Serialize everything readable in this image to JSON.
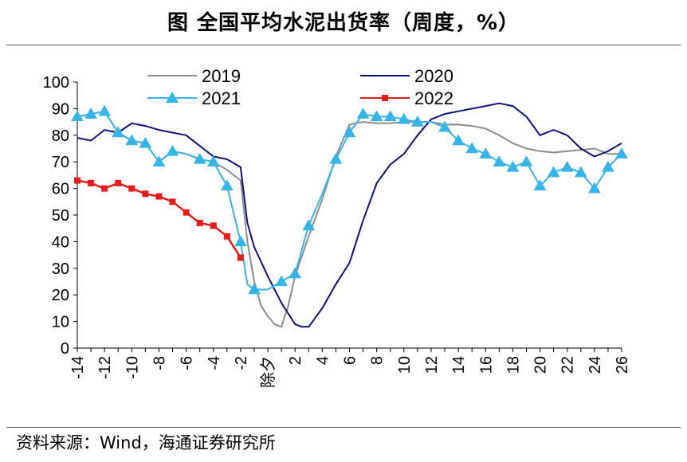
{
  "title": "图  全国平均水泥出货率（周度，%）",
  "source": "资料来源：Wind，海通证券研究所",
  "chart_data": {
    "type": "line",
    "title": "全国平均水泥出货率（周度，%）",
    "xlabel": "",
    "ylabel": "",
    "ylim": [
      0,
      100
    ],
    "yticks": [
      0,
      10,
      20,
      30,
      40,
      50,
      60,
      70,
      80,
      90,
      100
    ],
    "xlim": [
      -14,
      26
    ],
    "xticks": [
      "-14",
      "-12",
      "-10",
      "-8",
      "-6",
      "-4",
      "-2",
      "除夕",
      "2",
      "4",
      "6",
      "8",
      "10",
      "12",
      "14",
      "16",
      "18",
      "20",
      "22",
      "24",
      "26"
    ],
    "legend": "top",
    "series": [
      {
        "name": "2019",
        "color": "#8c8c8c",
        "marker": "none",
        "x": [
          -14,
          -13,
          -12,
          -11,
          -10,
          -9,
          -8,
          -7,
          -6,
          -5,
          -4,
          -3,
          -2,
          -1.5,
          -1,
          -0.5,
          0,
          0.5,
          1,
          1.5,
          2,
          3,
          4,
          5,
          6,
          7,
          8,
          9,
          10,
          11,
          12,
          13,
          14,
          15,
          16,
          17,
          18,
          19,
          20,
          21,
          22,
          23,
          24,
          25,
          26
        ],
        "values": [
          87,
          88,
          89,
          81,
          78,
          77,
          70,
          74,
          73,
          71,
          70,
          67,
          63,
          40,
          25,
          16,
          12,
          9,
          8,
          16,
          27,
          42,
          56,
          72,
          84,
          85,
          84.5,
          84.5,
          85,
          85,
          85,
          84,
          84,
          83.5,
          82.5,
          80,
          77,
          75,
          74,
          73.5,
          74,
          74.5,
          75,
          73,
          73
        ]
      },
      {
        "name": "2020",
        "color": "#10107a",
        "marker": "none",
        "x": [
          -14,
          -13,
          -12,
          -11,
          -10,
          -9,
          -8,
          -7,
          -6,
          -5,
          -4,
          -3,
          -2,
          -1.5,
          -1,
          0,
          1,
          2,
          2.5,
          3,
          4,
          5,
          6,
          7,
          8,
          9,
          10,
          11,
          12,
          13,
          14,
          15,
          16,
          17,
          18,
          19,
          20,
          21,
          22,
          23,
          24,
          25,
          26
        ],
        "values": [
          79,
          78,
          82,
          81,
          84.5,
          83.5,
          82,
          81,
          80,
          76,
          72,
          71,
          68,
          47,
          38,
          27,
          17,
          9,
          8,
          8,
          15,
          24,
          32,
          48,
          62,
          69,
          73,
          80,
          86,
          88,
          89,
          90,
          91,
          92,
          91,
          87,
          80,
          82,
          80,
          75,
          72,
          74,
          77
        ]
      },
      {
        "name": "2021",
        "color": "#35b4ea",
        "marker": "triangle",
        "x": [
          -14,
          -13,
          -12,
          -11,
          -10,
          -9,
          -8,
          -7,
          -6,
          -5,
          -4,
          -3,
          -2,
          -1.5,
          -1,
          0,
          1,
          2,
          3,
          4,
          5,
          6,
          7,
          8,
          9,
          10,
          11,
          12,
          13,
          14,
          15,
          16,
          17,
          18,
          19,
          20,
          21,
          22,
          23,
          24,
          25,
          26
        ],
        "markers_x": [
          -14,
          -13,
          -12,
          -11,
          -10,
          -9,
          -8,
          -7,
          -5,
          -4,
          -3,
          -2,
          -1,
          1,
          2,
          3,
          5,
          6,
          7,
          8,
          9,
          10,
          11,
          13,
          14,
          15,
          16,
          17,
          18,
          19,
          20,
          21,
          22,
          23,
          24,
          25,
          26
        ],
        "values": [
          87,
          88,
          89,
          81,
          78,
          77,
          70,
          74,
          73,
          71,
          70,
          61,
          40,
          24,
          22,
          22,
          25,
          28,
          46,
          58,
          71,
          81,
          88,
          87,
          87,
          86,
          85,
          85,
          83,
          78,
          75,
          73,
          70,
          68,
          70,
          61,
          66,
          68,
          66,
          60,
          68,
          73
        ],
        "markers_values": [
          87,
          88,
          89,
          81,
          78,
          77,
          70,
          74,
          71,
          70,
          61,
          40,
          22,
          25,
          28,
          46,
          71,
          81,
          88,
          87,
          87,
          86,
          85,
          83,
          78,
          75,
          73,
          70,
          68,
          70,
          61,
          66,
          68,
          66,
          60,
          68,
          73
        ]
      },
      {
        "name": "2022",
        "color": "#e41d18",
        "marker": "square",
        "x": [
          -14,
          -13,
          -12,
          -11,
          -10,
          -9,
          -8,
          -7,
          -6,
          -5,
          -4,
          -3,
          -2
        ],
        "values": [
          63,
          62,
          60,
          62,
          60,
          58,
          57,
          55,
          51,
          47,
          46,
          42,
          34
        ]
      }
    ]
  }
}
